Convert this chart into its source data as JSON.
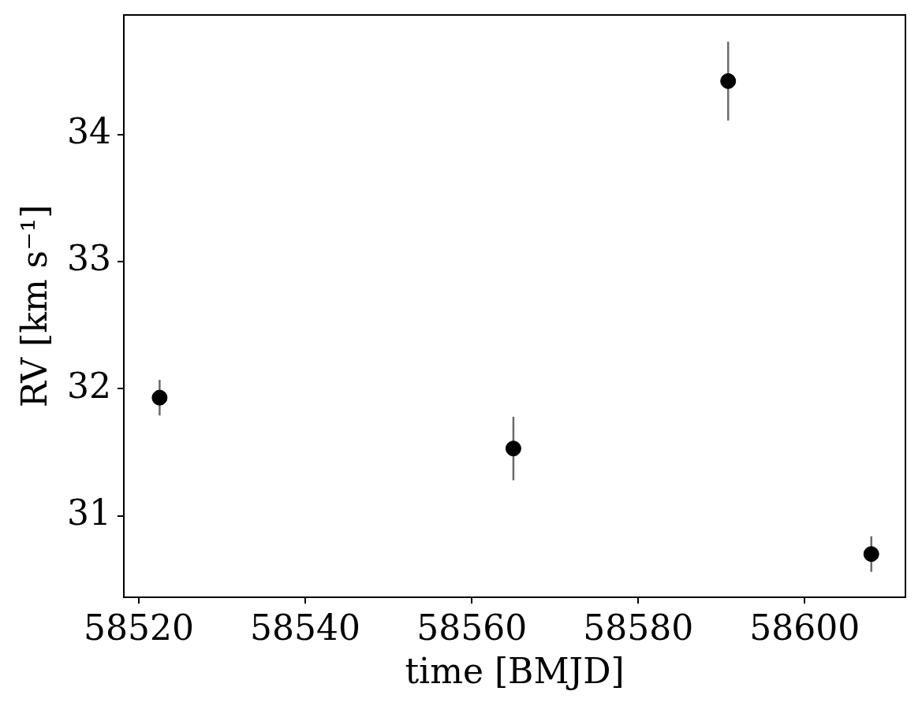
{
  "chart_data": {
    "type": "scatter",
    "xlabel": "time [BMJD]",
    "ylabel": "RV [km s⁻¹]",
    "x": [
      58522.5,
      58565.0,
      58590.8,
      58608.0
    ],
    "series": [
      {
        "color": "#000000",
        "values": [
          31.93,
          31.53,
          34.42,
          30.7
        ],
        "errors": [
          0.14,
          0.25,
          0.31,
          0.14
        ]
      }
    ],
    "xlim": [
      58518.2,
      58612.1
    ],
    "ylim": [
      30.36,
      34.94
    ],
    "xticks": [
      58520,
      58540,
      58560,
      58580,
      58600
    ],
    "yticks": [
      31,
      32,
      33,
      34
    ],
    "marker": "circle"
  }
}
